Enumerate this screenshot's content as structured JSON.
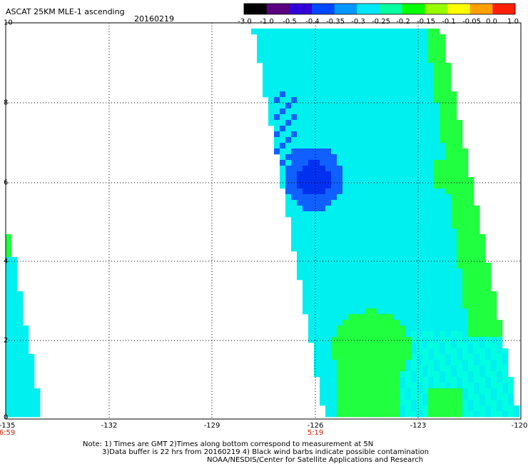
{
  "header": {
    "title": "ASCAT 25KM MLE-1 ascending",
    "date": "20160219"
  },
  "colorbar": {
    "ticks": [
      "-3.0",
      "-1.0",
      "-0.5",
      "-0.4",
      "-0.35",
      "-0.3",
      "-0.25",
      "-0.2",
      "-0.15",
      "-0.1",
      "-0.05",
      "0.0",
      "1.0"
    ],
    "colors": [
      "#000000",
      "#5a0080",
      "#3000d8",
      "#0048ff",
      "#0098ff",
      "#00e8ff",
      "#00ffa0",
      "#00ff00",
      "#98ff00",
      "#ffff00",
      "#ffa000",
      "#ff2000"
    ]
  },
  "axes": {
    "y_ticks": [
      "0",
      "2",
      "4",
      "6",
      "8",
      "10"
    ],
    "x_ticks": [
      "-135",
      "-132",
      "-129",
      "-126",
      "-123",
      "-120"
    ],
    "time_labels": [
      "6:59",
      "5:19"
    ]
  },
  "notes": [
    "Note: 1) Times are GMT 2)Times along bottom correspond to measurement at 5N",
    "3)Data buffer is 22 hrs from 20160219 4) Black wind barbs indicate possible contamination",
    "NOAA/NESDIS/Center for Satellite Applications and Research"
  ],
  "swaths": [
    {
      "name": "right-swath",
      "region": "lon -127.8 to -120.3, lat 0 to 9.7",
      "dominant_color": "#00ffe8"
    },
    {
      "name": "left-swath",
      "region": "lon -135 to -134.4, lat 0 to 4.6",
      "dominant_color": "#00e8ff"
    }
  ],
  "colors": {
    "cyan": "#00f0f0",
    "light_cyan": "#00ffe0",
    "green": "#20ff40",
    "blue": "#1060ff",
    "dark_blue": "#0030f0",
    "time_label": "#d02000"
  }
}
